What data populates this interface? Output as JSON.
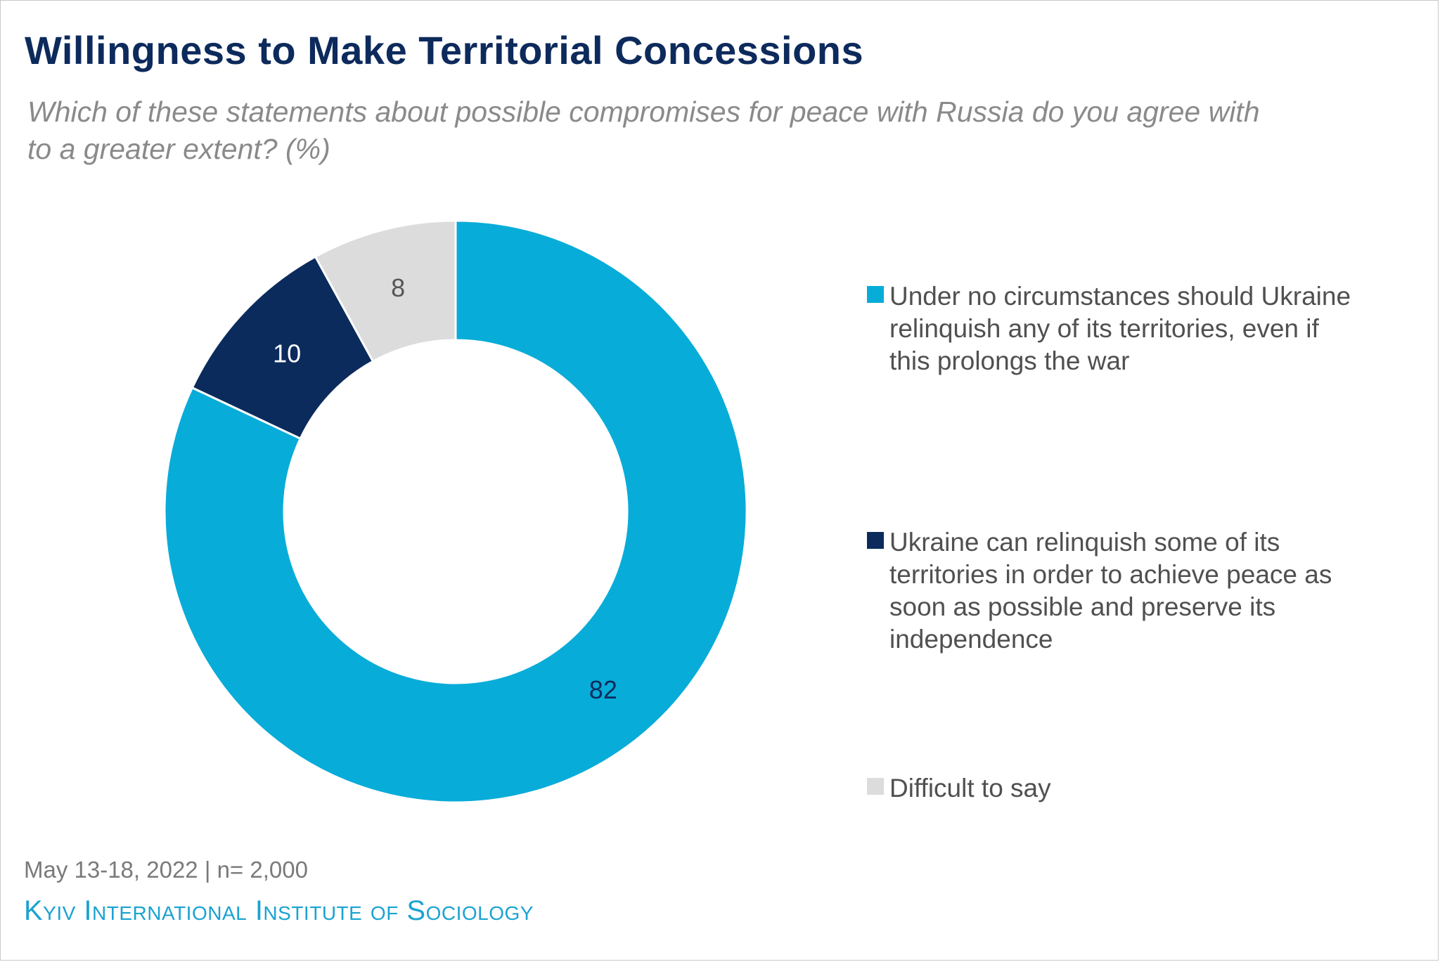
{
  "title": "Willingness to Make Territorial Concessions",
  "subtitle": "Which of these statements about possible compromises for peace with Russia do you agree with to a greater extent? (%)",
  "footer": {
    "date_sample": "May 13-18, 2022  | n= 2,000",
    "organization": "Kyiv International Institute of Sociology"
  },
  "colors": {
    "slice_1": "#08acd8",
    "slice_2": "#0b2b5c",
    "slice_3": "#dcdcdc",
    "label_on_light": "#0b2b5c",
    "label_on_dark": "#ffffff",
    "label_on_grey": "#555555"
  },
  "chart_data": {
    "type": "pie",
    "donut": true,
    "start": "top, clockwise",
    "legend_position": "right",
    "categories": [
      "Under no circumstances should Ukraine relinquish any of its territories, even if this prolongs the war",
      "Ukraine can relinquish some of its territories in order to achieve peace as soon as possible and preserve its independence",
      "Difficult to say"
    ],
    "values": [
      82,
      10,
      8
    ],
    "data_labels": [
      "82",
      "10",
      "8"
    ]
  }
}
